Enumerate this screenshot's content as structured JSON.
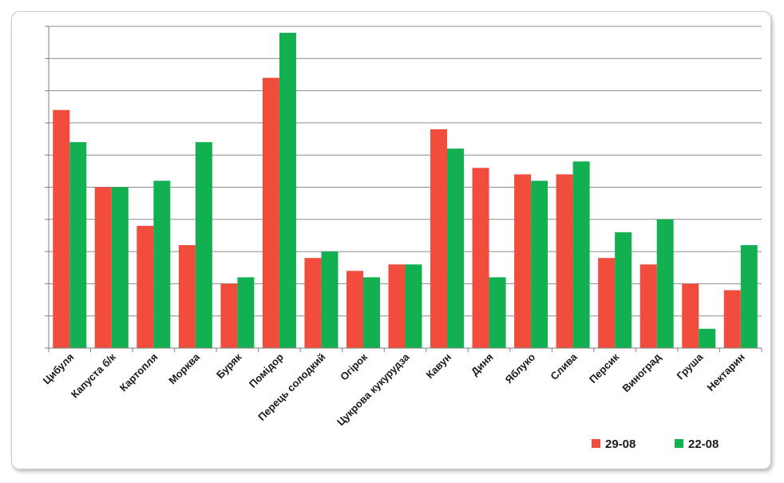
{
  "chart_data": {
    "type": "bar",
    "categories": [
      "Цибуля",
      "Капуста б/к",
      "Картопля",
      "Морква",
      "Буряк",
      "Помідор",
      "Перець солодкий",
      "Огірок",
      "Цукрова кукурудза",
      "Кавун",
      "Диня",
      "Яблуко",
      "Слива",
      "Персик",
      "Виноград",
      "Груша",
      "Нектарин"
    ],
    "series": [
      {
        "name": "29-08",
        "color": "#f24c3d",
        "values": [
          7.4,
          5.0,
          3.8,
          3.2,
          2.0,
          8.4,
          2.8,
          2.4,
          2.6,
          6.8,
          5.6,
          5.4,
          5.4,
          2.8,
          2.6,
          2.0,
          1.8
        ]
      },
      {
        "name": "22-08",
        "color": "#12b050",
        "values": [
          6.4,
          5.0,
          5.2,
          6.4,
          2.2,
          9.8,
          3.0,
          2.2,
          2.6,
          6.2,
          2.2,
          5.2,
          5.8,
          3.6,
          4.0,
          0.6,
          3.2
        ]
      }
    ],
    "ylim": [
      0,
      10
    ],
    "grid": true,
    "legend_position": "bottom-right",
    "title": "",
    "xlabel": "",
    "ylabel": ""
  }
}
